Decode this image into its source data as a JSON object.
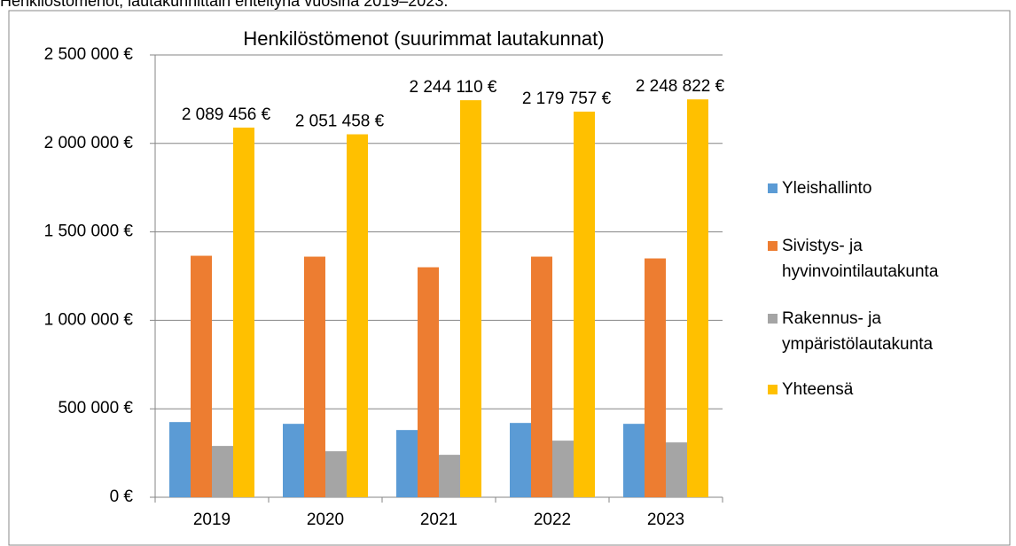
{
  "caption": "Henkilöstömenot, lautakunnittain eriteltynä vuosina 2019–2023.",
  "chart_data": {
    "type": "bar",
    "title": "Henkilöstömenot (suurimmat lautakunnat)",
    "categories": [
      "2019",
      "2020",
      "2021",
      "2022",
      "2023"
    ],
    "series": [
      {
        "name": "Yleishallinto",
        "color": "#5b9bd5",
        "values": [
          425000,
          415000,
          380000,
          420000,
          415000
        ]
      },
      {
        "name": "Sivistys- ja hyvinvointilautakunta",
        "color": "#ed7d31",
        "values": [
          1365000,
          1360000,
          1300000,
          1360000,
          1350000
        ]
      },
      {
        "name": "Rakennus- ja ympäristölautakunta",
        "color": "#a5a5a5",
        "values": [
          290000,
          260000,
          240000,
          320000,
          310000
        ]
      },
      {
        "name": "Yhteensä",
        "color": "#ffc000",
        "values": [
          2089456,
          2051458,
          2244110,
          2179757,
          2248822
        ],
        "value_labels": [
          "2 089 456 €",
          "2 051 458 €",
          "2 244 110 €",
          "2 179 757 €",
          "2 248 822 €"
        ]
      }
    ],
    "ylim": [
      0,
      2500000
    ],
    "yticks": [
      {
        "value": 0,
        "label": "0 €"
      },
      {
        "value": 500000,
        "label": "500 000 €"
      },
      {
        "value": 1000000,
        "label": "1 000 000 €"
      },
      {
        "value": 1500000,
        "label": "1 500 000 €"
      },
      {
        "value": 2000000,
        "label": "2 000 000 €"
      },
      {
        "value": 2500000,
        "label": "2 500 000 €"
      }
    ],
    "grid": true,
    "legend": "right"
  }
}
